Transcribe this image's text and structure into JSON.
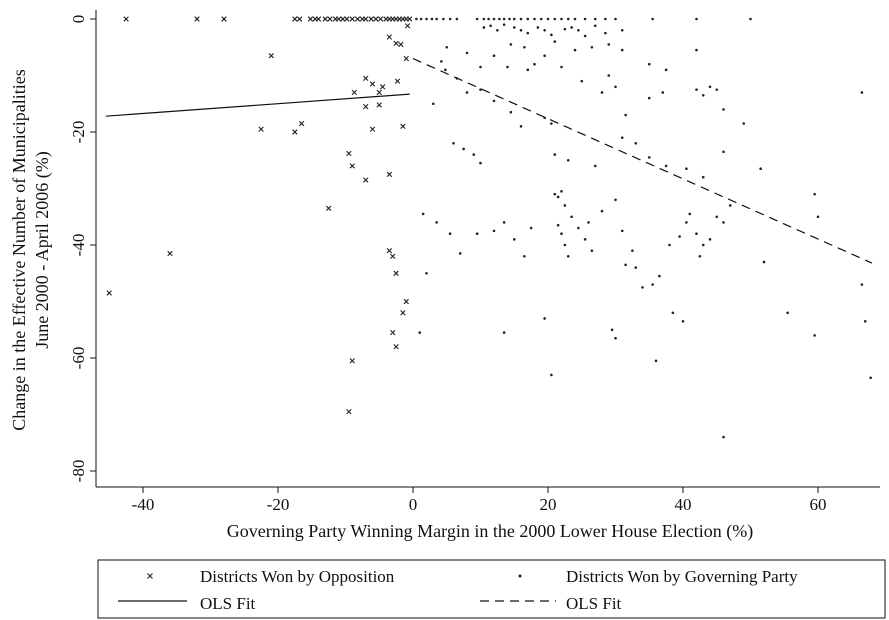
{
  "chart_data": {
    "type": "scatter",
    "title": "",
    "xlabel": "Governing Party Winning Margin in the 2000 Lower House Election (%)",
    "ylabel_lines": [
      "Change in the Effective Number of Municipalities",
      "June 2000 - April 2006 (%)"
    ],
    "xlim": [
      -46,
      69
    ],
    "ylim": [
      -85,
      2
    ],
    "x_ticks": [
      -40,
      -20,
      0,
      20,
      40,
      60
    ],
    "y_ticks": [
      0,
      -20,
      -40,
      -60,
      -80
    ],
    "grid": false,
    "legend_position": "bottom",
    "series": [
      {
        "name": "Districts Won by Opposition",
        "marker": "x",
        "points": [
          [
            -42.5,
            0
          ],
          [
            -32,
            0
          ],
          [
            -28,
            0
          ],
          [
            -17.5,
            0
          ],
          [
            -16.8,
            0
          ],
          [
            -15.2,
            0
          ],
          [
            -14.5,
            0
          ],
          [
            -14,
            0
          ],
          [
            -13,
            0
          ],
          [
            -12.3,
            0
          ],
          [
            -11.5,
            0
          ],
          [
            -11,
            0
          ],
          [
            -10.4,
            0
          ],
          [
            -9.8,
            0
          ],
          [
            -9,
            0
          ],
          [
            -8.2,
            0
          ],
          [
            -7.5,
            0
          ],
          [
            -7,
            0
          ],
          [
            -6.2,
            0
          ],
          [
            -5.5,
            0
          ],
          [
            -4.8,
            0
          ],
          [
            -4,
            0
          ],
          [
            -3.5,
            0
          ],
          [
            -3,
            0
          ],
          [
            -2.5,
            0
          ],
          [
            -2,
            0
          ],
          [
            -1.5,
            0
          ],
          [
            -1,
            0
          ],
          [
            -0.5,
            0
          ],
          [
            -0.8,
            -1.2
          ],
          [
            -3.5,
            -3.2
          ],
          [
            -2.5,
            -4.3
          ],
          [
            -1.8,
            -4.5
          ],
          [
            -1,
            -7
          ],
          [
            -21,
            -6.5
          ],
          [
            -7,
            -10.5
          ],
          [
            -6,
            -11.5
          ],
          [
            -4.5,
            -12
          ],
          [
            -5,
            -13
          ],
          [
            -2.3,
            -11
          ],
          [
            -8.7,
            -13
          ],
          [
            -7,
            -15.5
          ],
          [
            -5,
            -15.2
          ],
          [
            -16.5,
            -18.5
          ],
          [
            -17.5,
            -20
          ],
          [
            -22.5,
            -19.5
          ],
          [
            -6,
            -19.5
          ],
          [
            -1.5,
            -19
          ],
          [
            -9.5,
            -23.8
          ],
          [
            -9,
            -26
          ],
          [
            -7,
            -28.5
          ],
          [
            -3.5,
            -27.5
          ],
          [
            -12.5,
            -33.5
          ],
          [
            -36,
            -41.5
          ],
          [
            -3.5,
            -41
          ],
          [
            -3,
            -42
          ],
          [
            -2.5,
            -45
          ],
          [
            -45,
            -48.5
          ],
          [
            -1,
            -50
          ],
          [
            -1.5,
            -52
          ],
          [
            -3,
            -55.5
          ],
          [
            -2.5,
            -58
          ],
          [
            -9,
            -60.5
          ],
          [
            -9.5,
            -69.5
          ]
        ]
      },
      {
        "name": "Districts Won by Governing Party",
        "marker": "dot",
        "points": [
          [
            0.5,
            0
          ],
          [
            1.2,
            0
          ],
          [
            2,
            0
          ],
          [
            2.8,
            0
          ],
          [
            3.5,
            0
          ],
          [
            4.5,
            0
          ],
          [
            5.5,
            0
          ],
          [
            6.5,
            0
          ],
          [
            9.5,
            0
          ],
          [
            10.5,
            0
          ],
          [
            11.2,
            0
          ],
          [
            12,
            0
          ],
          [
            12.8,
            0
          ],
          [
            13.5,
            0
          ],
          [
            14.3,
            0
          ],
          [
            15,
            0
          ],
          [
            16,
            0
          ],
          [
            17,
            0
          ],
          [
            18,
            0
          ],
          [
            19,
            0
          ],
          [
            20,
            0
          ],
          [
            21,
            0
          ],
          [
            22,
            0
          ],
          [
            23,
            0
          ],
          [
            24,
            0
          ],
          [
            25.5,
            0
          ],
          [
            27,
            0
          ],
          [
            28.5,
            0
          ],
          [
            30,
            0
          ],
          [
            35.5,
            0
          ],
          [
            42,
            0
          ],
          [
            50,
            0
          ],
          [
            10.5,
            -1.5
          ],
          [
            11.5,
            -1.2
          ],
          [
            12.5,
            -2
          ],
          [
            13.5,
            -1
          ],
          [
            15,
            -1.5
          ],
          [
            16,
            -2
          ],
          [
            17,
            -2.5
          ],
          [
            18.5,
            -1.5
          ],
          [
            19.5,
            -2
          ],
          [
            20.5,
            -2.8
          ],
          [
            22.5,
            -1.8
          ],
          [
            23.5,
            -1.5
          ],
          [
            24.5,
            -2
          ],
          [
            25.5,
            -3
          ],
          [
            27,
            -1.2
          ],
          [
            28.5,
            -2.5
          ],
          [
            31,
            -2
          ],
          [
            14.5,
            -4.5
          ],
          [
            16.5,
            -5
          ],
          [
            19.5,
            -6.5
          ],
          [
            21,
            -4
          ],
          [
            24,
            -5.5
          ],
          [
            26.5,
            -5
          ],
          [
            29,
            -4.5
          ],
          [
            31,
            -5.5
          ],
          [
            35,
            -8
          ],
          [
            37.5,
            -9
          ],
          [
            42,
            -5.5
          ],
          [
            10,
            -8.5
          ],
          [
            8,
            -6
          ],
          [
            12,
            -6.5
          ],
          [
            14,
            -8.5
          ],
          [
            17,
            -9
          ],
          [
            18,
            -8
          ],
          [
            22,
            -8.5
          ],
          [
            4.2,
            -7.5
          ],
          [
            5,
            -5
          ],
          [
            4.8,
            -9
          ],
          [
            6.5,
            -10.5
          ],
          [
            8,
            -13
          ],
          [
            10,
            -12.5
          ],
          [
            12,
            -14.5
          ],
          [
            14.5,
            -16.5
          ],
          [
            16,
            -19
          ],
          [
            19.5,
            -17.5
          ],
          [
            20.5,
            -18.5
          ],
          [
            25,
            -11
          ],
          [
            29,
            -10
          ],
          [
            30,
            -12
          ],
          [
            28,
            -13
          ],
          [
            31.5,
            -17
          ],
          [
            35,
            -14
          ],
          [
            37,
            -13
          ],
          [
            42,
            -12.5
          ],
          [
            43,
            -13.5
          ],
          [
            44,
            -12
          ],
          [
            45,
            -12.5
          ],
          [
            49,
            -18.5
          ],
          [
            46,
            -16
          ],
          [
            3,
            -15
          ],
          [
            6,
            -22
          ],
          [
            7.5,
            -23
          ],
          [
            9,
            -24
          ],
          [
            10,
            -25.5
          ],
          [
            21,
            -24
          ],
          [
            23,
            -25
          ],
          [
            27,
            -26
          ],
          [
            31,
            -21
          ],
          [
            33,
            -22
          ],
          [
            35,
            -24.5
          ],
          [
            37.5,
            -26
          ],
          [
            40.5,
            -26.5
          ],
          [
            43,
            -28
          ],
          [
            46,
            -23.5
          ],
          [
            51.5,
            -26.5
          ],
          [
            1.5,
            -34.5
          ],
          [
            2,
            -45
          ],
          [
            3.5,
            -36
          ],
          [
            5.5,
            -38
          ],
          [
            7,
            -41.5
          ],
          [
            9.5,
            -38
          ],
          [
            12,
            -37.5
          ],
          [
            13.5,
            -36
          ],
          [
            15,
            -39
          ],
          [
            16.5,
            -42
          ],
          [
            17.5,
            -37
          ],
          [
            21,
            -31
          ],
          [
            21.5,
            -31.5
          ],
          [
            22,
            -30.5
          ],
          [
            22.5,
            -33
          ],
          [
            23.5,
            -35
          ],
          [
            24.5,
            -37
          ],
          [
            25.5,
            -39
          ],
          [
            26.5,
            -41
          ],
          [
            21.5,
            -36.5
          ],
          [
            22,
            -38
          ],
          [
            22.5,
            -40
          ],
          [
            23,
            -42
          ],
          [
            26,
            -36
          ],
          [
            28,
            -34
          ],
          [
            30,
            -32
          ],
          [
            31,
            -37.5
          ],
          [
            31.5,
            -43.5
          ],
          [
            32.5,
            -41
          ],
          [
            33,
            -44
          ],
          [
            34,
            -47.5
          ],
          [
            35.5,
            -47
          ],
          [
            36.5,
            -45.5
          ],
          [
            38,
            -40
          ],
          [
            39.5,
            -38.5
          ],
          [
            40.5,
            -36
          ],
          [
            41,
            -34.5
          ],
          [
            42,
            -38
          ],
          [
            42.5,
            -42
          ],
          [
            43,
            -40
          ],
          [
            44,
            -39
          ],
          [
            45,
            -35
          ],
          [
            46,
            -36
          ],
          [
            47,
            -33
          ],
          [
            52,
            -43
          ],
          [
            55.5,
            -52
          ],
          [
            59.5,
            -31
          ],
          [
            60,
            -35
          ],
          [
            1,
            -55.5
          ],
          [
            13.5,
            -55.5
          ],
          [
            19.5,
            -53
          ],
          [
            20.5,
            -63
          ],
          [
            29.5,
            -55
          ],
          [
            30,
            -56.5
          ],
          [
            36,
            -60.5
          ],
          [
            38.5,
            -52
          ],
          [
            40,
            -53.5
          ],
          [
            46,
            -74
          ],
          [
            59.5,
            -56
          ],
          [
            66.5,
            -47
          ],
          [
            67,
            -53.5
          ],
          [
            67.8,
            -63.5
          ],
          [
            66.5,
            -13
          ]
        ]
      }
    ],
    "fit_lines": [
      {
        "name": "OLS Fit",
        "style": "solid",
        "x": [
          -45.5,
          -0.5
        ],
        "y": [
          -17.2,
          -13.3
        ]
      },
      {
        "name": "OLS Fit",
        "style": "dashed",
        "x": [
          0,
          68
        ],
        "y": [
          -7,
          -43.2
        ]
      }
    ],
    "legend": [
      {
        "label": "Districts Won by Opposition",
        "symbol": "x"
      },
      {
        "label": "Districts Won by Governing Party",
        "symbol": "dot"
      },
      {
        "label": "OLS Fit",
        "symbol": "solid-line"
      },
      {
        "label": "OLS Fit",
        "symbol": "dashed-line"
      }
    ]
  }
}
